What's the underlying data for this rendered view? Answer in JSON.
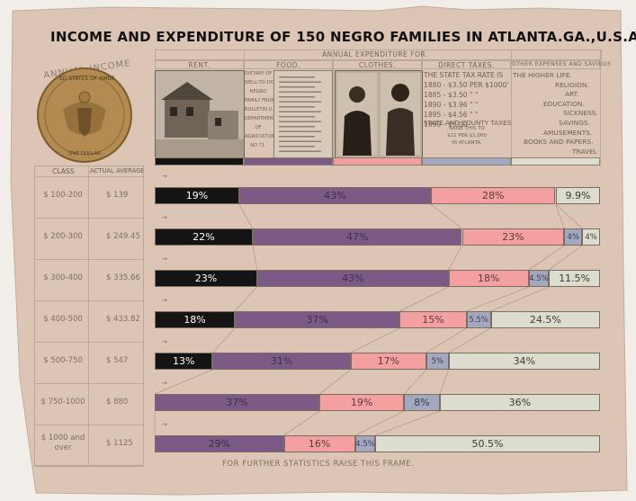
{
  "title": "INCOME AND EXPENDITURE OF 150 NEGRO FAMILIES IN ATLANTA.GA.,U.S.A.",
  "seal": {
    "arc_text": "ANNUAL INCOME",
    "ring_top": "ED STATES OF AMER",
    "ring_bottom": "ONE DOLLAR"
  },
  "header": {
    "annual_expenditure": "ANNUAL EXPENDITURE FOR.",
    "class_label": "CLASS",
    "average_label": "ACTUAL AVERAGE",
    "columns": [
      "RENT.",
      "FOOD.",
      "CLOTHES.",
      "DIRECT TAXES.",
      "OTHER EXPENSES AND SAVINGS"
    ]
  },
  "food_note": [
    "DIETARY OF",
    "WELL-TO-DO",
    "NEGRO",
    "FAMILY FROM",
    "BULLETIN U.S.",
    "DEPARTMENT",
    "OF",
    "AGRICULTURE",
    "NO 71."
  ],
  "tax_note": {
    "lines": [
      "THE STATE TAX RATE IS",
      "1880 - $3.50 PER $1000'",
      "1885 - $3.50 \" \"",
      "1890 - $3.96 \" \"",
      "1895 - $4.56 \" \"",
      "1899 - $5.00"
    ],
    "overlay": "STATE AND COUNTY TAXES",
    "sub": [
      "RAISE THIS TO",
      "$21 PER $1,000",
      "IN ATLANTA."
    ]
  },
  "other_note": [
    "THE HIGHER LIFE.",
    "RELIGION.",
    "ART.",
    "EDUCATION.",
    "SICKNESS.",
    "SAVINGS.",
    "AMUSEMENTS.",
    "BOOKS AND PAPERS.",
    "TRAVEL"
  ],
  "colors": {
    "rent": "#141414",
    "food": "#7c5a86",
    "clothes": "#f4a0a0",
    "taxes": "#a3a8c0",
    "other": "#dcdccf",
    "paper": "#dac4b4"
  },
  "footer": "FOR FURTHER STATISTICS RAISE THIS FRAME.",
  "chart_data": {
    "type": "bar",
    "stacked": true,
    "categories": [
      "$ 100-200",
      "$ 200-300",
      "$ 300-400",
      "$ 400-500",
      "$ 500-750",
      "$ 750-1000",
      "$ 1000 and over"
    ],
    "averages": [
      "$ 139",
      "$ 249.45",
      "$ 335.66",
      "$ 433.82",
      "$ 547",
      "$ 880",
      "$ 1125"
    ],
    "series": [
      {
        "name": "RENT.",
        "values": [
          19,
          22,
          23,
          18,
          13,
          0,
          0
        ],
        "labels": [
          "19%",
          "22%",
          "23%",
          "18%",
          "13%",
          "",
          ""
        ]
      },
      {
        "name": "FOOD.",
        "values": [
          43,
          47,
          43,
          37,
          31,
          37,
          29
        ],
        "labels": [
          "43%",
          "47%",
          "43%",
          "37%",
          "31%",
          "37%",
          "29%"
        ]
      },
      {
        "name": "CLOTHES.",
        "values": [
          28,
          23,
          18,
          15,
          17,
          19,
          16
        ],
        "labels": [
          "28%",
          "23%",
          "18%",
          "15%",
          "17%",
          "19%",
          "16%"
        ]
      },
      {
        "name": "DIRECT TAXES.",
        "values": [
          0.1,
          4,
          4.5,
          5.5,
          5,
          8,
          4.5
        ],
        "labels": [
          "",
          "4%",
          "4.5%",
          "5.5%",
          "5%",
          "8%",
          "4.5%"
        ]
      },
      {
        "name": "OTHER EXPENSES AND SAVINGS",
        "values": [
          9.9,
          4,
          11.5,
          24.5,
          34,
          36,
          50.5
        ],
        "labels": [
          "9.9%",
          "4%",
          "11.5%",
          "24.5%",
          "34%",
          "36%",
          "50.5%"
        ]
      }
    ],
    "xlim": [
      0,
      100
    ]
  }
}
